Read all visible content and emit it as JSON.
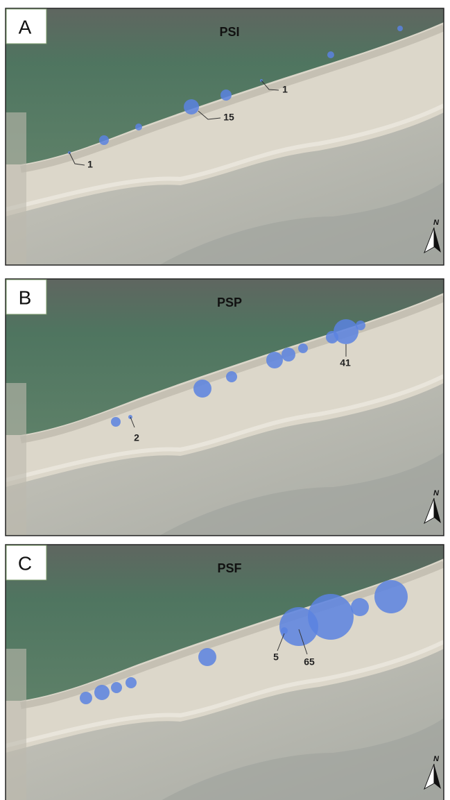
{
  "panels": [
    {
      "letter": "A",
      "title": "PSI",
      "labels": [
        1,
        15,
        1
      ],
      "north": "N"
    },
    {
      "letter": "B",
      "title": "PSP",
      "labels": [
        41,
        2
      ],
      "north": "N"
    },
    {
      "letter": "C",
      "title": "PSF",
      "labels": [
        5,
        65
      ],
      "north": "N"
    }
  ]
}
